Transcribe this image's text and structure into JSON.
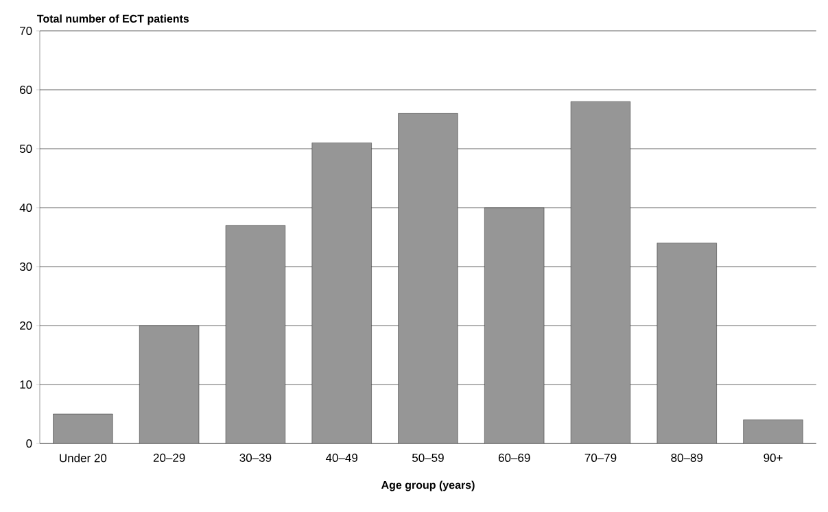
{
  "chart_data": {
    "type": "bar",
    "xlabel": "Age group (years)",
    "ylabel": "Total number of ECT patients",
    "categories": [
      "Under 20",
      "20–29",
      "30–39",
      "40–49",
      "50–59",
      "60–69",
      "70–79",
      "80–89",
      "90+"
    ],
    "values": [
      5,
      20,
      37,
      51,
      56,
      40,
      58,
      34,
      4
    ],
    "color": "#969696",
    "ylim": [
      0,
      70
    ],
    "yticks": [
      0,
      10,
      20,
      30,
      40,
      50,
      60,
      70
    ],
    "grid": "y"
  }
}
